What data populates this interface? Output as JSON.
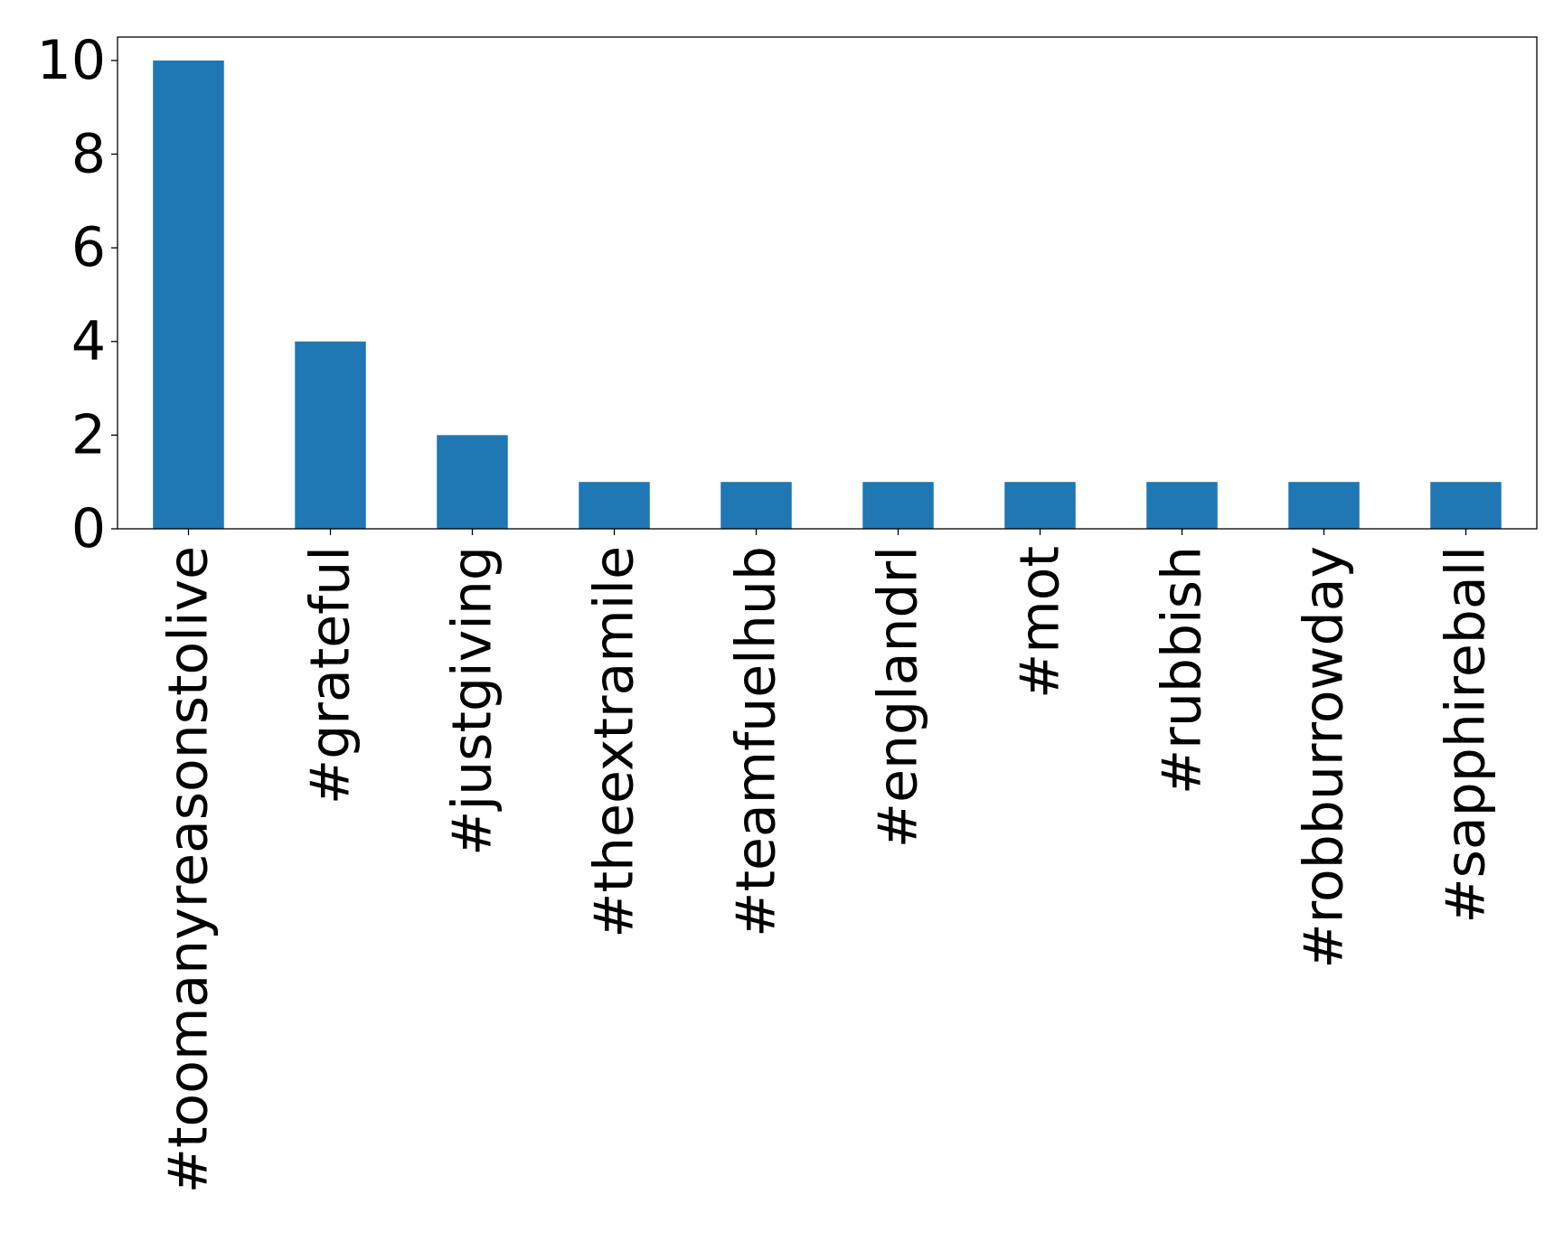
{
  "chart_data": {
    "type": "bar",
    "title": "",
    "xlabel": "",
    "ylabel": "",
    "categories": [
      "#toomanyreasonstolive",
      "#grateful",
      "#justgiving",
      "#theextramile",
      "#teamfuelhub",
      "#englandrl",
      "#mot",
      "#rubbish",
      "#robburrowday",
      "#sapphireball"
    ],
    "values": [
      10,
      4,
      2,
      1,
      1,
      1,
      1,
      1,
      1,
      1
    ],
    "ylim": [
      0,
      10.5
    ],
    "yticks": [
      0,
      2,
      4,
      6,
      8,
      10
    ],
    "grid": false,
    "legend": "none",
    "colors": {
      "bar": "#1f77b4",
      "axes": "#000000",
      "background": "#ffffff"
    }
  }
}
